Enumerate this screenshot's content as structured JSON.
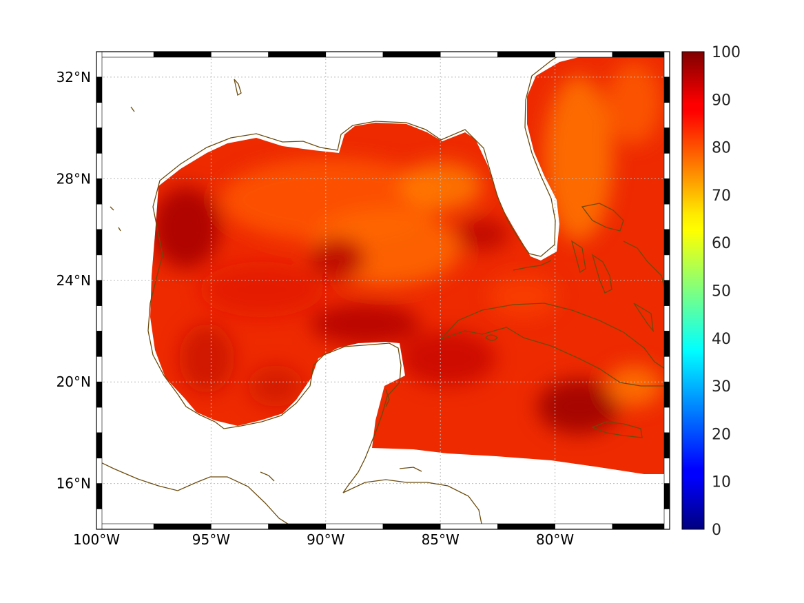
{
  "map": {
    "lon_range": [
      -100,
      -75
    ],
    "lat_range": [
      14.2,
      33
    ],
    "x_ticks": [
      {
        "lon": -100,
        "label": "100°W"
      },
      {
        "lon": -95,
        "label": "95°W"
      },
      {
        "lon": -90,
        "label": "90°W"
      },
      {
        "lon": -85,
        "label": "85°W"
      },
      {
        "lon": -80,
        "label": "80°W"
      }
    ],
    "y_ticks": [
      {
        "lat": 32,
        "label": "32°N"
      },
      {
        "lat": 28,
        "label": "28°N"
      },
      {
        "lat": 24,
        "label": "24°N"
      },
      {
        "lat": 20,
        "label": "20°N"
      },
      {
        "lat": 16,
        "label": "16°N"
      }
    ],
    "grid": "dotted",
    "coastline_color": "#6b4a0c",
    "field_colors": [
      "#b00000",
      "#e81c00",
      "#ff3a00",
      "#ff6a00",
      "#ff9a00"
    ]
  },
  "colorbar": {
    "min": 0,
    "max": 100,
    "labels": [
      "100",
      "90",
      "80",
      "70",
      "60",
      "50",
      "40",
      "30",
      "20",
      "10",
      "0"
    ],
    "colormap": "jet"
  }
}
